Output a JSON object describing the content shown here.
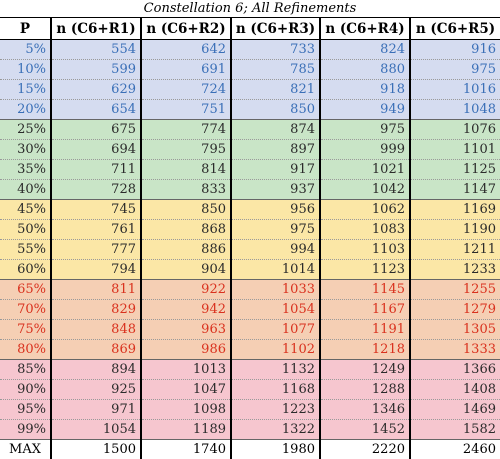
{
  "title": "Constellation 6; All Refinements",
  "headers": [
    "P",
    "n (C6+R1)",
    "n (C6+R2)",
    "n (C6+R3)",
    "n (C6+R4)",
    "n (C6+R5)"
  ],
  "colors": {
    "blue": "#d5dcf0",
    "green": "#c9e5c7",
    "yellow": "#fbe7a6",
    "orange": "#f5cfb4",
    "pink": "#f6c6cf"
  },
  "rows": [
    {
      "p": "5%",
      "group": "blue",
      "values": [
        "554",
        "642",
        "733",
        "824",
        "916"
      ]
    },
    {
      "p": "10%",
      "group": "blue",
      "values": [
        "599",
        "691",
        "785",
        "880",
        "975"
      ]
    },
    {
      "p": "15%",
      "group": "blue",
      "values": [
        "629",
        "724",
        "821",
        "918",
        "1016"
      ]
    },
    {
      "p": "20%",
      "group": "blue",
      "values": [
        "654",
        "751",
        "850",
        "949",
        "1048"
      ]
    },
    {
      "p": "25%",
      "group": "green",
      "values": [
        "675",
        "774",
        "874",
        "975",
        "1076"
      ]
    },
    {
      "p": "30%",
      "group": "green",
      "values": [
        "694",
        "795",
        "897",
        "999",
        "1101"
      ]
    },
    {
      "p": "35%",
      "group": "green",
      "values": [
        "711",
        "814",
        "917",
        "1021",
        "1125"
      ]
    },
    {
      "p": "40%",
      "group": "green",
      "values": [
        "728",
        "833",
        "937",
        "1042",
        "1147"
      ]
    },
    {
      "p": "45%",
      "group": "yellow",
      "values": [
        "745",
        "850",
        "956",
        "1062",
        "1169"
      ]
    },
    {
      "p": "50%",
      "group": "yellow",
      "values": [
        "761",
        "868",
        "975",
        "1083",
        "1190"
      ]
    },
    {
      "p": "55%",
      "group": "yellow",
      "values": [
        "777",
        "886",
        "994",
        "1103",
        "1211"
      ]
    },
    {
      "p": "60%",
      "group": "yellow",
      "values": [
        "794",
        "904",
        "1014",
        "1123",
        "1233"
      ]
    },
    {
      "p": "65%",
      "group": "orange",
      "values": [
        "811",
        "922",
        "1033",
        "1145",
        "1255"
      ]
    },
    {
      "p": "70%",
      "group": "orange",
      "values": [
        "829",
        "942",
        "1054",
        "1167",
        "1279"
      ]
    },
    {
      "p": "75%",
      "group": "orange",
      "values": [
        "848",
        "963",
        "1077",
        "1191",
        "1305"
      ]
    },
    {
      "p": "80%",
      "group": "orange",
      "values": [
        "869",
        "986",
        "1102",
        "1218",
        "1333"
      ]
    },
    {
      "p": "85%",
      "group": "pink",
      "values": [
        "894",
        "1013",
        "1132",
        "1249",
        "1366"
      ]
    },
    {
      "p": "90%",
      "group": "pink",
      "values": [
        "925",
        "1047",
        "1168",
        "1288",
        "1408"
      ]
    },
    {
      "p": "95%",
      "group": "pink",
      "values": [
        "971",
        "1098",
        "1223",
        "1346",
        "1469"
      ]
    },
    {
      "p": "99%",
      "group": "pink",
      "values": [
        "1054",
        "1189",
        "1322",
        "1452",
        "1582"
      ]
    }
  ],
  "max_row": {
    "label": "MAX",
    "values": [
      "1500",
      "1740",
      "1980",
      "2220",
      "2460"
    ]
  }
}
